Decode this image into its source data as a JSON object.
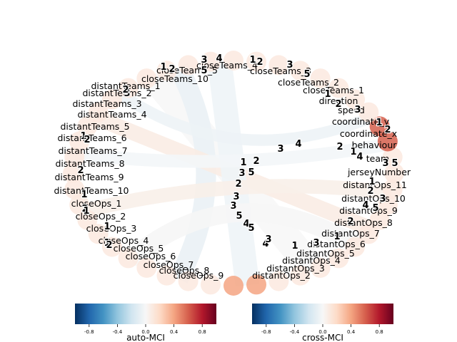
{
  "chart_data": {
    "type": "chord",
    "nodes_left": [
      "closeTeams_10",
      "distantTeams_1",
      "distantTeams_2",
      "distantTeams_3",
      "distantTeams_4",
      "distantTeams_5",
      "distantTeams_6",
      "distantTeams_7",
      "distantTeams_8",
      "distantTeams_9",
      "distantTeams_10",
      "closeOps_1",
      "closeOps_2",
      "closeOps_3",
      "closeOps_4",
      "closeOps_5",
      "closeOps_6",
      "closeOps_7",
      "closeOps_8",
      "closeOps_9"
    ],
    "nodes_right": [
      "closeTeams_2",
      "closeTeams_1",
      "direction",
      "speed",
      "coordinate_y",
      "coordinate_x",
      "behaviour",
      "team",
      "jerseyNumber",
      "distantOps_11",
      "distantOps_10",
      "distantOps_9",
      "distantOps_8",
      "distantOps_7",
      "distantOps_6",
      "distantOps_5",
      "distantOps_4",
      "distantOps_3",
      "distantOps_2"
    ],
    "nodes_top_overlapping": [
      "closeTeams_5",
      "closeTeams_4",
      "closeTeams_3"
    ],
    "colorbars": [
      {
        "label": "auto-MCI",
        "range": [
          -1,
          1
        ],
        "ticks": [
          "-0.8",
          "-0.4",
          "0.0",
          "0.4",
          "0.8"
        ]
      },
      {
        "label": "cross-MCI",
        "range": [
          -1,
          1
        ],
        "ticks": [
          "-0.8",
          "-0.4",
          "0.0",
          "0.4",
          "0.8"
        ]
      }
    ],
    "colormap": "RdBu_r",
    "lag_digits": [
      "1",
      "2",
      "3",
      "4",
      "5"
    ],
    "grid": false
  }
}
